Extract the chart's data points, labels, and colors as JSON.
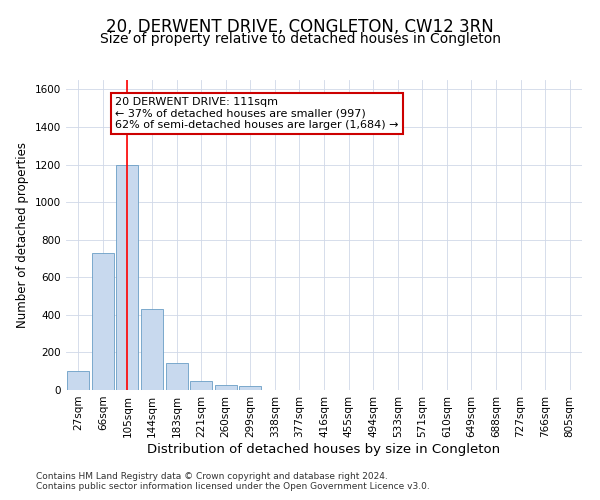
{
  "title": "20, DERWENT DRIVE, CONGLETON, CW12 3RN",
  "subtitle": "Size of property relative to detached houses in Congleton",
  "xlabel": "Distribution of detached houses by size in Congleton",
  "ylabel": "Number of detached properties",
  "footnote1": "Contains HM Land Registry data © Crown copyright and database right 2024.",
  "footnote2": "Contains public sector information licensed under the Open Government Licence v3.0.",
  "categories": [
    "27sqm",
    "66sqm",
    "105sqm",
    "144sqm",
    "183sqm",
    "221sqm",
    "260sqm",
    "299sqm",
    "338sqm",
    "377sqm",
    "416sqm",
    "455sqm",
    "494sqm",
    "533sqm",
    "571sqm",
    "610sqm",
    "649sqm",
    "688sqm",
    "727sqm",
    "766sqm",
    "805sqm"
  ],
  "values": [
    100,
    730,
    1200,
    430,
    145,
    50,
    25,
    20,
    0,
    0,
    0,
    0,
    0,
    0,
    0,
    0,
    0,
    0,
    0,
    0,
    0
  ],
  "bar_color": "#c8d9ee",
  "bar_edge_color": "#6a9ec5",
  "red_line_x": 2.0,
  "annotation_text_line1": "20 DERWENT DRIVE: 111sqm",
  "annotation_text_line2": "← 37% of detached houses are smaller (997)",
  "annotation_text_line3": "62% of semi-detached houses are larger (1,684) →",
  "annotation_box_color": "#ffffff",
  "annotation_box_edge_color": "#cc0000",
  "ylim": [
    0,
    1650
  ],
  "yticks": [
    0,
    200,
    400,
    600,
    800,
    1000,
    1200,
    1400,
    1600
  ],
  "background_color": "#ffffff",
  "grid_color": "#d0d8e8",
  "title_fontsize": 12,
  "subtitle_fontsize": 10,
  "xlabel_fontsize": 9.5,
  "ylabel_fontsize": 8.5,
  "tick_fontsize": 7.5,
  "annotation_fontsize": 8,
  "footnote_fontsize": 6.5
}
